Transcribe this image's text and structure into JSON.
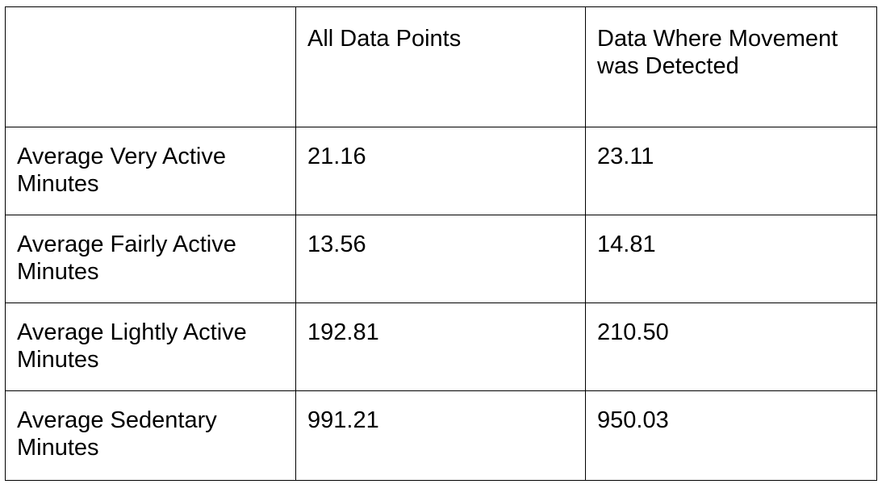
{
  "table": {
    "headers": [
      "",
      "All Data Points",
      "Data Where Movement was Detected"
    ],
    "rows": [
      {
        "label": "Average Very Active Minutes",
        "all": "21.16",
        "movement": "23.11"
      },
      {
        "label": "Average Fairly Active Minutes",
        "all": "13.56",
        "movement": "14.81"
      },
      {
        "label": "Average Lightly Active Minutes",
        "all": "192.81",
        "movement": "210.50"
      },
      {
        "label": "Average Sedentary Minutes",
        "all": "991.21",
        "movement": "950.03"
      }
    ]
  }
}
